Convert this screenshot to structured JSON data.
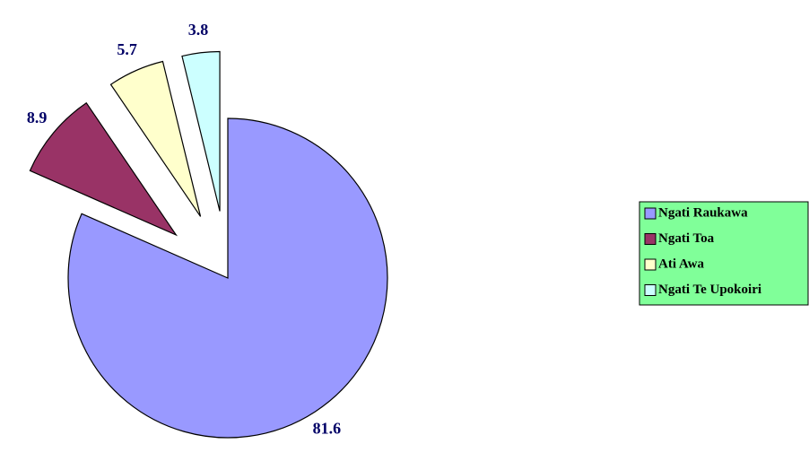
{
  "chart_data": {
    "type": "pie",
    "categories": [
      "Ngati Raukawa",
      "Ngati Toa",
      "Ati Awa",
      "Ngati Te Upokoiri"
    ],
    "values": [
      81.6,
      8.9,
      5.7,
      3.8
    ],
    "colors": [
      "#9999ff",
      "#993366",
      "#ffffcc",
      "#ccffff"
    ],
    "legend": "right"
  }
}
